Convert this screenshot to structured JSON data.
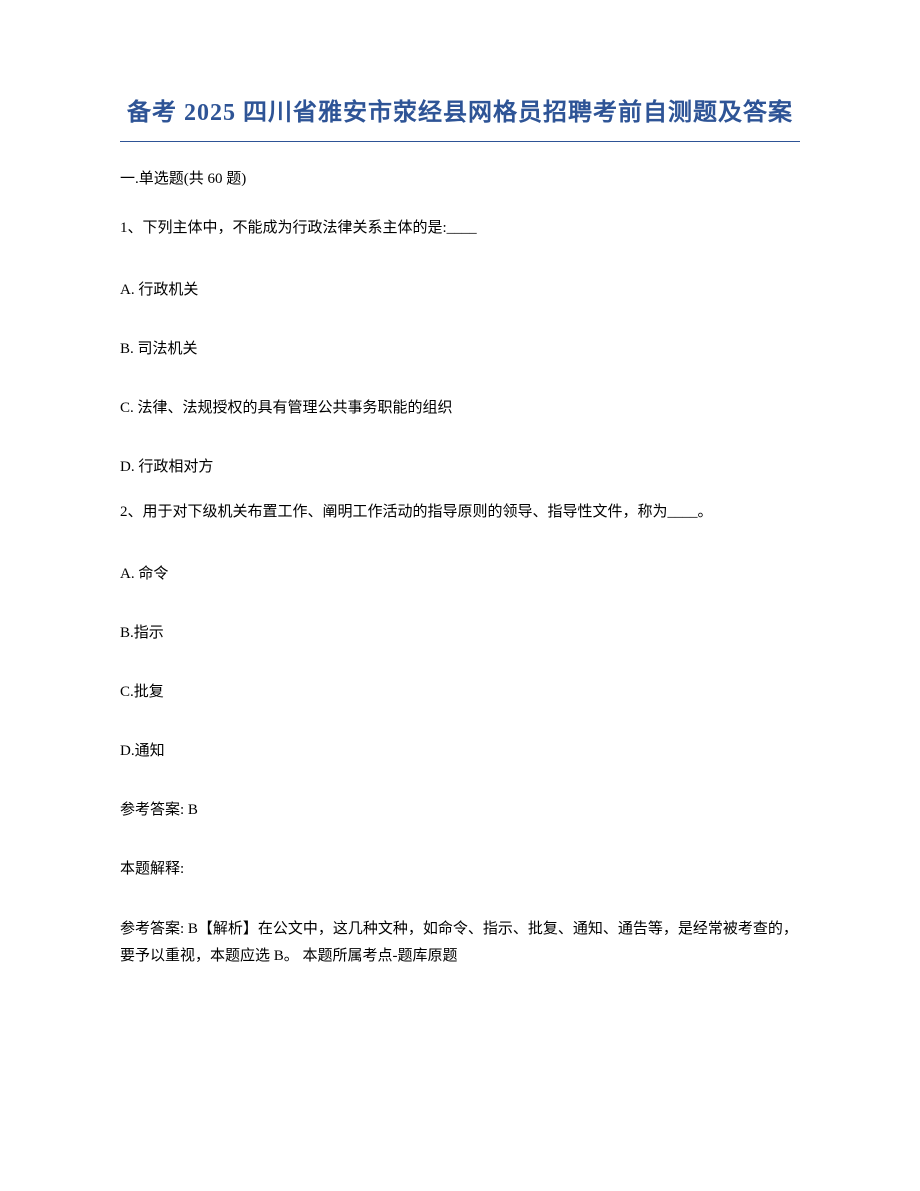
{
  "title": "备考 2025 四川省雅安市荥经县网格员招聘考前自测题及答案",
  "section": "一.单选题(共 60 题)",
  "question1": {
    "stem": "1、下列主体中，不能成为行政法律关系主体的是:____",
    "optionA": "A. 行政机关",
    "optionB": "B. 司法机关",
    "optionC": "C. 法律、法规授权的具有管理公共事务职能的组织",
    "optionD": "D. 行政相对方"
  },
  "question2": {
    "stem": "2、用于对下级机关布置工作、阐明工作活动的指导原则的领导、指导性文件，称为____。",
    "optionA": "A. 命令",
    "optionB": "B.指示",
    "optionC": "C.批复",
    "optionD": "D.通知",
    "answer": "参考答案: B",
    "explainLabel": "本题解释:",
    "explainText": "参考答案: B【解析】在公文中，这几种文种，如命令、指示、批复、通知、通告等，是经常被考查的，要予以重视，本题应选 B。 本题所属考点-题库原题"
  }
}
